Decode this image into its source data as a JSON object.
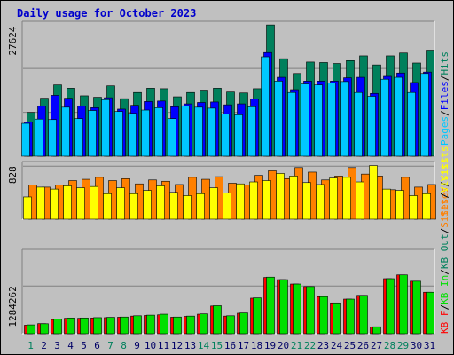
{
  "title": "Daily usage for October 2023",
  "colors": {
    "hits": "#00805c",
    "files": "#0000ff",
    "pages": "#00c8ff",
    "visits": "#ffff00",
    "sites": "#ff8000",
    "kbin": "#00e000",
    "kbout": "#ff0000",
    "day_weekend": "#00805c",
    "day_weekday": "#0000cc"
  },
  "chart_data": [
    {
      "type": "bar",
      "panel": "hits-files-pages",
      "ymax_label": "27624",
      "ylim": [
        0,
        27624
      ],
      "categories": [
        "1",
        "2",
        "3",
        "4",
        "5",
        "6",
        "7",
        "8",
        "9",
        "10",
        "11",
        "12",
        "13",
        "14",
        "15",
        "16",
        "17",
        "18",
        "19",
        "20",
        "21",
        "22",
        "23",
        "24",
        "25",
        "26",
        "27",
        "28",
        "29",
        "30",
        "31"
      ],
      "legend": [
        "Pages",
        "/",
        "Files",
        "/",
        "Hits"
      ],
      "series": [
        {
          "name": "Hits",
          "values": [
            9200,
            12200,
            15000,
            14300,
            12700,
            12400,
            14800,
            12100,
            13400,
            14300,
            14200,
            12500,
            13400,
            13900,
            14300,
            13500,
            13300,
            14200,
            27600,
            20500,
            17400,
            19800,
            19700,
            19500,
            20100,
            21100,
            19200,
            21100,
            21700,
            19600,
            22300
          ]
        },
        {
          "name": "Files",
          "values": [
            7200,
            10500,
            12800,
            12200,
            10500,
            10200,
            12300,
            9900,
            10700,
            11500,
            11600,
            10400,
            11000,
            11300,
            11400,
            10800,
            11000,
            12000,
            21800,
            16600,
            14000,
            15800,
            15800,
            15800,
            16500,
            16600,
            13200,
            16800,
            17500,
            15500,
            17700
          ]
        },
        {
          "name": "Pages",
          "values": [
            6900,
            7800,
            7700,
            10300,
            7900,
            9600,
            11900,
            9400,
            9000,
            9700,
            10200,
            7900,
            10600,
            10300,
            10100,
            8900,
            8700,
            10400,
            20900,
            15800,
            13400,
            15200,
            15000,
            15400,
            15700,
            13400,
            12600,
            16200,
            16600,
            13400,
            17400
          ]
        }
      ]
    },
    {
      "type": "bar",
      "panel": "visits-sites",
      "ymax_label": "828",
      "ylim": [
        0,
        828
      ],
      "categories": [
        "1",
        "2",
        "3",
        "4",
        "5",
        "6",
        "7",
        "8",
        "9",
        "10",
        "11",
        "12",
        "13",
        "14",
        "15",
        "16",
        "17",
        "18",
        "19",
        "20",
        "21",
        "22",
        "23",
        "24",
        "25",
        "26",
        "27",
        "28",
        "29",
        "30",
        "31"
      ],
      "legend": [
        "Sites",
        "/",
        "Visits"
      ],
      "series": [
        {
          "name": "Visits",
          "values": [
            340,
            490,
            460,
            510,
            480,
            500,
            390,
            480,
            390,
            440,
            510,
            410,
            360,
            390,
            480,
            400,
            540,
            570,
            590,
            700,
            660,
            560,
            530,
            630,
            640,
            570,
            820,
            460,
            440,
            360,
            390
          ]
        },
        {
          "name": "Sites",
          "values": [
            520,
            490,
            520,
            590,
            610,
            640,
            590,
            620,
            540,
            600,
            580,
            530,
            640,
            610,
            650,
            550,
            520,
            670,
            740,
            620,
            790,
            720,
            600,
            660,
            790,
            690,
            660,
            450,
            640,
            490,
            530
          ]
        }
      ]
    },
    {
      "type": "bar",
      "panel": "kbin-kbout",
      "ymax_label": "1284262",
      "ylim": [
        0,
        1284262
      ],
      "categories": [
        "1",
        "2",
        "3",
        "4",
        "5",
        "6",
        "7",
        "8",
        "9",
        "10",
        "11",
        "12",
        "13",
        "14",
        "15",
        "16",
        "17",
        "18",
        "19",
        "20",
        "21",
        "22",
        "23",
        "24",
        "25",
        "26",
        "27",
        "28",
        "29",
        "30",
        "31"
      ],
      "legend": [
        "KB F",
        "/",
        "KB In",
        "/",
        "KB Out",
        "/",
        "Sites",
        "/",
        "Visits"
      ],
      "series": [
        {
          "name": "KB In",
          "values": [
            140000,
            158000,
            230000,
            250000,
            250000,
            255000,
            260000,
            265000,
            285000,
            295000,
            310000,
            265000,
            280000,
            315000,
            445000,
            285000,
            330000,
            570000,
            900000,
            860000,
            790000,
            750000,
            590000,
            490000,
            550000,
            610000,
            110000,
            875000,
            935000,
            835000,
            660000
          ]
        },
        {
          "name": "KB Out",
          "values": [
            135000,
            160000,
            225000,
            245000,
            245000,
            250000,
            255000,
            262000,
            280000,
            290000,
            300000,
            262000,
            275000,
            310000,
            440000,
            280000,
            325000,
            565000,
            895000,
            860000,
            790000,
            750000,
            590000,
            490000,
            550000,
            610000,
            105000,
            875000,
            935000,
            835000,
            660000
          ]
        }
      ]
    }
  ],
  "x_labels": [
    {
      "text": "1",
      "weekend": true
    },
    {
      "text": "2",
      "weekend": false
    },
    {
      "text": "3",
      "weekend": false
    },
    {
      "text": "4",
      "weekend": false
    },
    {
      "text": "5",
      "weekend": false
    },
    {
      "text": "6",
      "weekend": false
    },
    {
      "text": "7",
      "weekend": true
    },
    {
      "text": "8",
      "weekend": true
    },
    {
      "text": "9",
      "weekend": false
    },
    {
      "text": "10",
      "weekend": false
    },
    {
      "text": "11",
      "weekend": false
    },
    {
      "text": "12",
      "weekend": false
    },
    {
      "text": "13",
      "weekend": false
    },
    {
      "text": "14",
      "weekend": true
    },
    {
      "text": "15",
      "weekend": true
    },
    {
      "text": "16",
      "weekend": false
    },
    {
      "text": "17",
      "weekend": false
    },
    {
      "text": "18",
      "weekend": false
    },
    {
      "text": "19",
      "weekend": false
    },
    {
      "text": "20",
      "weekend": false
    },
    {
      "text": "21",
      "weekend": true
    },
    {
      "text": "22",
      "weekend": true
    },
    {
      "text": "23",
      "weekend": false
    },
    {
      "text": "24",
      "weekend": false
    },
    {
      "text": "25",
      "weekend": false
    },
    {
      "text": "26",
      "weekend": false
    },
    {
      "text": "27",
      "weekend": false
    },
    {
      "text": "28",
      "weekend": true
    },
    {
      "text": "29",
      "weekend": true
    },
    {
      "text": "30",
      "weekend": false
    },
    {
      "text": "31",
      "weekend": false
    }
  ]
}
